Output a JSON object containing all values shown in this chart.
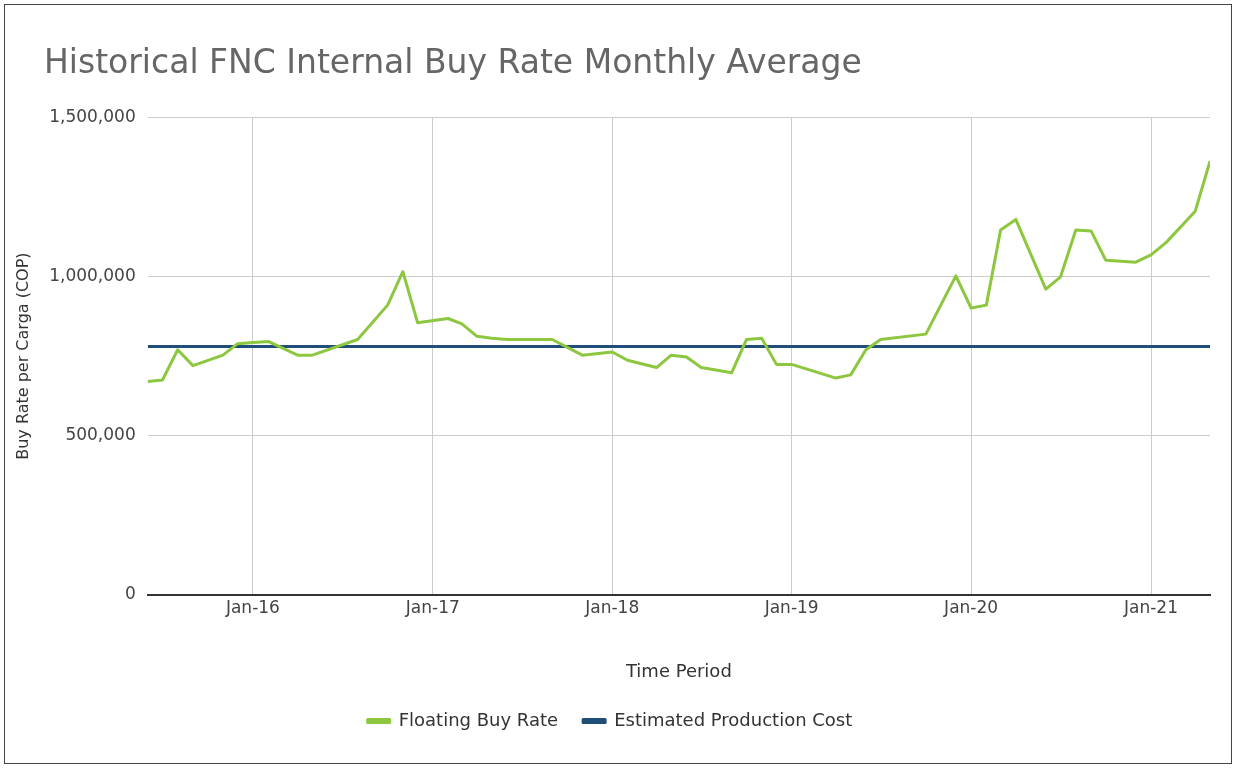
{
  "chart_data": {
    "type": "line",
    "title": "Historical FNC Internal Buy Rate Monthly Average",
    "xlabel": "Time Period",
    "ylabel": "Buy Rate per Carga (COP)",
    "xlim": [
      "2015-06",
      "2021-05"
    ],
    "xticks": [
      {
        "value": "2016-01",
        "label": "Jan-16"
      },
      {
        "value": "2017-01",
        "label": "Jan-17"
      },
      {
        "value": "2018-01",
        "label": "Jan-18"
      },
      {
        "value": "2019-01",
        "label": "Jan-19"
      },
      {
        "value": "2020-01",
        "label": "Jan-20"
      },
      {
        "value": "2021-01",
        "label": "Jan-21"
      }
    ],
    "ylim": [
      0,
      1500000
    ],
    "yticks": [
      0,
      {
        "value": 500000,
        "label": "500,000"
      },
      {
        "value": 1000000,
        "label": "1,000,000"
      },
      {
        "value": 1500000,
        "label": "1,500,000"
      }
    ],
    "grid": true,
    "legend": "bottom",
    "marker": "none",
    "line_style": "solid",
    "series": [
      {
        "name": "Floating Buy Rate",
        "color": "#8dc63f",
        "x": [
          "2015-06",
          "2015-07",
          "2015-08",
          "2015-09",
          "2015-11",
          "2015-12",
          "2016-02",
          "2016-04",
          "2016-05",
          "2016-08",
          "2016-10",
          "2016-11",
          "2016-12",
          "2017-02",
          "2017-03",
          "2017-04",
          "2017-05",
          "2017-06",
          "2017-09",
          "2017-11",
          "2018-01",
          "2018-02",
          "2018-04",
          "2018-05",
          "2018-06",
          "2018-07",
          "2018-09",
          "2018-10",
          "2018-11",
          "2018-12",
          "2019-01",
          "2019-04",
          "2019-05",
          "2019-06",
          "2019-07",
          "2019-10",
          "2019-12",
          "2020-01",
          "2020-02",
          "2020-03",
          "2020-04",
          "2020-06",
          "2020-07",
          "2020-08",
          "2020-09",
          "2020-10",
          "2020-11",
          "2020-12",
          "2021-01",
          "2021-02",
          "2021-04",
          "2021-05"
        ],
        "values": [
          670000,
          675000,
          770000,
          720000,
          753000,
          789000,
          796000,
          753000,
          753000,
          802000,
          910000,
          1015000,
          855000,
          868000,
          851000,
          812000,
          806000,
          802000,
          802000,
          753000,
          763000,
          737000,
          714000,
          753000,
          747000,
          714000,
          698000,
          802000,
          806000,
          724000,
          724000,
          681000,
          691000,
          770000,
          802000,
          819000,
          1002000,
          901000,
          910000,
          1146000,
          1179000,
          960000,
          999000,
          1146000,
          1143000,
          1051000,
          1048000,
          1045000,
          1068000,
          1107000,
          1205000,
          1362000
        ]
      },
      {
        "name": "Estimated Production Cost",
        "color": "#1f4e79",
        "x": [
          "2015-06",
          "2021-05"
        ],
        "values": [
          780000,
          780000
        ]
      }
    ]
  }
}
